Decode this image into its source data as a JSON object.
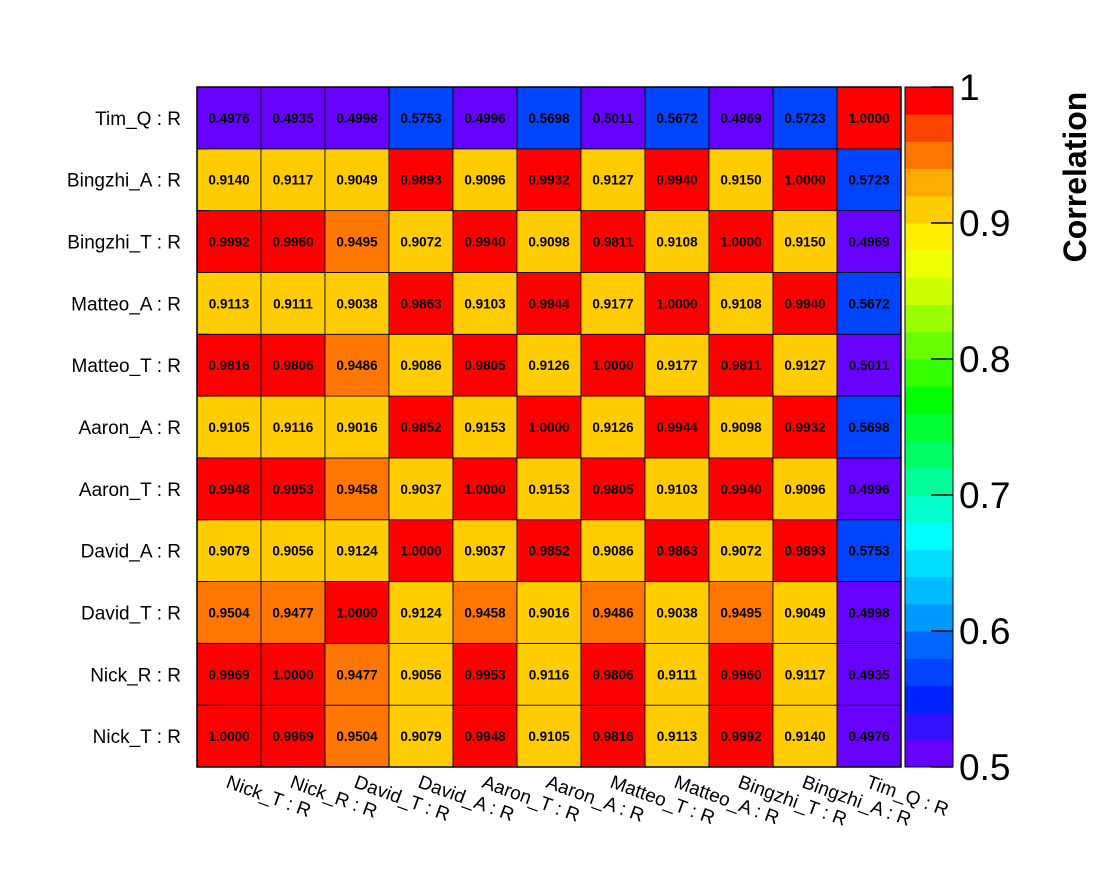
{
  "chart_data": {
    "type": "heatmap",
    "x_categories": [
      "Nick_T : R",
      "Nick_R : R",
      "David_T : R",
      "David_A : R",
      "Aaron_T : R",
      "Aaron_A : R",
      "Matteo_T : R",
      "Matteo_A : R",
      "Bingzhi_T : R",
      "Bingzhi_A : R",
      "Tim_Q : R"
    ],
    "y_categories": [
      "Nick_T : R",
      "Nick_R : R",
      "David_T : R",
      "David_A : R",
      "Aaron_T : R",
      "Aaron_A : R",
      "Matteo_T : R",
      "Matteo_A : R",
      "Bingzhi_T : R",
      "Bingzhi_A : R",
      "Tim_Q : R"
    ],
    "values": [
      [
        "1.0000",
        "0.9969",
        "0.9504",
        "0.9079",
        "0.9948",
        "0.9105",
        "0.9816",
        "0.9113",
        "0.9992",
        "0.9140",
        "0.4976"
      ],
      [
        "0.9969",
        "1.0000",
        "0.9477",
        "0.9056",
        "0.9953",
        "0.9116",
        "0.9806",
        "0.9111",
        "0.9960",
        "0.9117",
        "0.4935"
      ],
      [
        "0.9504",
        "0.9477",
        "1.0000",
        "0.9124",
        "0.9458",
        "0.9016",
        "0.9486",
        "0.9038",
        "0.9495",
        "0.9049",
        "0.4998"
      ],
      [
        "0.9079",
        "0.9056",
        "0.9124",
        "1.0000",
        "0.9037",
        "0.9852",
        "0.9086",
        "0.9863",
        "0.9072",
        "0.9893",
        "0.5753"
      ],
      [
        "0.9948",
        "0.9953",
        "0.9458",
        "0.9037",
        "1.0000",
        "0.9153",
        "0.9805",
        "0.9103",
        "0.9940",
        "0.9096",
        "0.4996"
      ],
      [
        "0.9105",
        "0.9116",
        "0.9016",
        "0.9852",
        "0.9153",
        "1.0000",
        "0.9126",
        "0.9944",
        "0.9098",
        "0.9932",
        "0.5698"
      ],
      [
        "0.9816",
        "0.9806",
        "0.9486",
        "0.9086",
        "0.9805",
        "0.9126",
        "1.0000",
        "0.9177",
        "0.9811",
        "0.9127",
        "0.5011"
      ],
      [
        "0.9113",
        "0.9111",
        "0.9038",
        "0.9863",
        "0.9103",
        "0.9944",
        "0.9177",
        "1.0000",
        "0.9108",
        "0.9940",
        "0.5672"
      ],
      [
        "0.9992",
        "0.9960",
        "0.9495",
        "0.9072",
        "0.9940",
        "0.9098",
        "0.9811",
        "0.9108",
        "1.0000",
        "0.9150",
        "0.4969"
      ],
      [
        "0.9140",
        "0.9117",
        "0.9049",
        "0.9893",
        "0.9096",
        "0.9932",
        "0.9127",
        "0.9940",
        "0.9150",
        "1.0000",
        "0.5723"
      ],
      [
        "0.4976",
        "0.4935",
        "0.4998",
        "0.5753",
        "0.4996",
        "0.5698",
        "0.5011",
        "0.5672",
        "0.4969",
        "0.5723",
        "1.0000"
      ]
    ],
    "color_range": [
      0.5,
      1.0
    ],
    "colorbar": {
      "title": "Correlation",
      "ticks": [
        0.5,
        0.6,
        0.7,
        0.8,
        0.9,
        1.0
      ],
      "tick_labels": [
        "0.5",
        "0.6",
        "0.7",
        "0.8",
        "0.9",
        "1"
      ]
    },
    "palette": [
      "#6600ff",
      "#3311ff",
      "#0022ff",
      "#0044ff",
      "#0066ff",
      "#0099ff",
      "#00bbff",
      "#00ddff",
      "#00ffff",
      "#00ffcc",
      "#00ff99",
      "#00ff66",
      "#00ff33",
      "#00ff00",
      "#33ff00",
      "#66ff00",
      "#99ff00",
      "#ccff00",
      "#eeff00",
      "#ffee00",
      "#ffcc00",
      "#ffaa00",
      "#ff7700",
      "#ff4400",
      "#ff0000"
    ],
    "grid": true,
    "legend_position": "right"
  }
}
